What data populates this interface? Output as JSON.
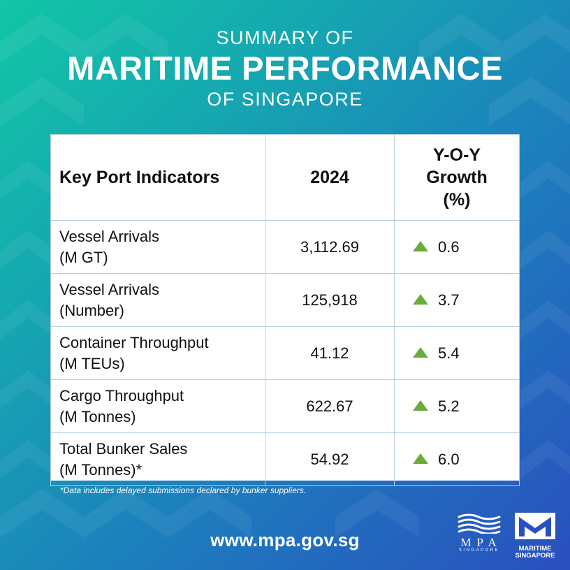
{
  "header": {
    "line1": "SUMMARY OF",
    "line2": "MARITIME PERFORMANCE",
    "line3": "OF SINGAPORE"
  },
  "table": {
    "headers": {
      "indicator": "Key Port Indicators",
      "year": "2024",
      "growth_line1": "Y-O-Y",
      "growth_line2": "Growth",
      "growth_line3": "(%)"
    },
    "rows": [
      {
        "name": "Vessel Arrivals",
        "unit": "(M GT)",
        "value": "3,112.69",
        "growth": "0.6"
      },
      {
        "name": "Vessel Arrivals",
        "unit": "(Number)",
        "value": "125,918",
        "growth": "3.7"
      },
      {
        "name": "Container Throughput",
        "unit": "(M TEUs)",
        "value": "41.12",
        "growth": "5.4"
      },
      {
        "name": "Cargo Throughput",
        "unit": "(M Tonnes)",
        "value": "622.67",
        "growth": "5.2"
      },
      {
        "name": "Total Bunker Sales",
        "unit": "(M Tonnes)*",
        "value": "54.92",
        "growth": "6.0"
      }
    ],
    "growth_icon": "up-triangle-icon",
    "growth_color": "#6aab3a"
  },
  "footnote": "*Data includes delayed submissions declared by bunker suppliers.",
  "url": "www.mpa.gov.sg",
  "logos": {
    "mpa": {
      "name": "MPA",
      "sub": "SINGAPORE"
    },
    "maritime": {
      "line1": "MARITIME",
      "line2": "SINGAPORE"
    }
  },
  "colors": {
    "gradient_start": "#12c6a6",
    "gradient_end": "#2a4fbf",
    "table_border": "#b8cfe0"
  }
}
